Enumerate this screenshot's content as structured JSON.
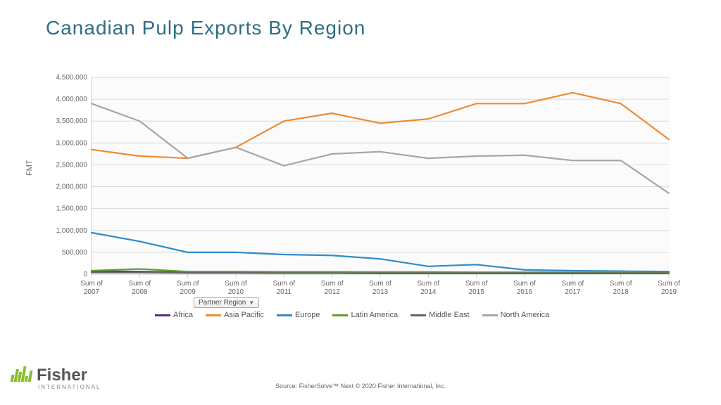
{
  "title": {
    "text": "Canadian Pulp Exports By Region",
    "color": "#2f6f82",
    "fontsize": 28
  },
  "chart": {
    "type": "line",
    "background_color": "#ffffff",
    "plot_background_color": "#fbfbfb",
    "grid_color": "#d9d9d9",
    "axis_line_color": "#cccccc",
    "x_categories": [
      "Sum of 2007",
      "Sum of 2008",
      "Sum of 2009",
      "Sum of 2010",
      "Sum of 2011",
      "Sum of 2012",
      "Sum of 2013",
      "Sum of 2014",
      "Sum of 2015",
      "Sum of 2016",
      "Sum of 2017",
      "Sum of 2018",
      "Sum of 2019"
    ],
    "y": {
      "min": 0,
      "max": 4500000,
      "tick_step": 500000,
      "title": "FMT",
      "label_fontsize": 10,
      "label_color": "#666666"
    },
    "line_width": 2.2,
    "series": [
      {
        "name": "Africa",
        "color": "#5b2d7e",
        "values": [
          70000,
          60000,
          40000,
          40000,
          30000,
          25000,
          20000,
          20000,
          20000,
          20000,
          20000,
          20000,
          20000
        ]
      },
      {
        "name": "Asia Pacific",
        "color": "#ed8b34",
        "values": [
          2850000,
          2700000,
          2650000,
          2900000,
          3500000,
          3680000,
          3450000,
          3550000,
          3900000,
          3900000,
          4150000,
          3900000,
          3080000
        ]
      },
      {
        "name": "Europe",
        "color": "#2f8bc9",
        "values": [
          950000,
          750000,
          500000,
          500000,
          450000,
          430000,
          350000,
          180000,
          220000,
          100000,
          80000,
          70000,
          60000
        ]
      },
      {
        "name": "Latin America",
        "color": "#5fa02c",
        "values": [
          80000,
          120000,
          60000,
          60000,
          55000,
          55000,
          50000,
          50000,
          45000,
          45000,
          40000,
          35000,
          30000
        ]
      },
      {
        "name": "Middle East",
        "color": "#666666",
        "values": [
          40000,
          40000,
          30000,
          30000,
          25000,
          25000,
          25000,
          25000,
          25000,
          25000,
          25000,
          25000,
          25000
        ]
      },
      {
        "name": "North America",
        "color": "#a6a6a6",
        "values": [
          3900000,
          3500000,
          2650000,
          2900000,
          2480000,
          2750000,
          2800000,
          2650000,
          2700000,
          2720000,
          2600000,
          2600000,
          1850000
        ]
      }
    ],
    "dropdown_label": "Partner Region",
    "legend_fontsize": 11,
    "xlabel_fontsize": 10
  },
  "source": "Source: FisherSolve™ Next © 2020 Fisher International, Inc.",
  "logo": {
    "name": "Fisher",
    "sub": "INTERNATIONAL",
    "brand_color": "#8bbd2f",
    "text_color": "#555555"
  }
}
